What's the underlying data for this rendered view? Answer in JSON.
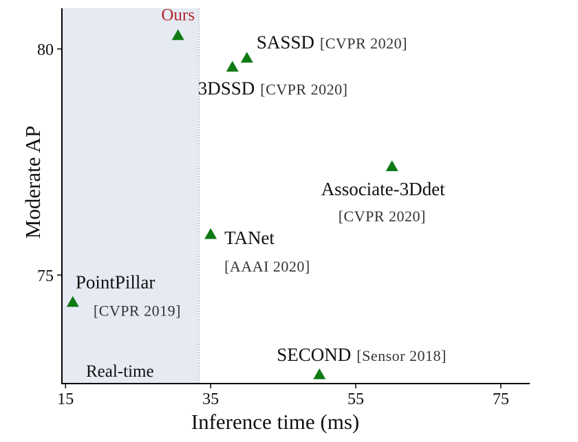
{
  "chart_data": {
    "type": "scatter",
    "xlabel": "Inference time (ms)",
    "ylabel": "Moderate AP",
    "xlim": [
      14.5,
      79
    ],
    "ylim": [
      72.6,
      80.9
    ],
    "x_ticks": [
      "15",
      "35",
      "55",
      "75"
    ],
    "y_ticks": [
      "75",
      "80"
    ],
    "region": {
      "label": "Real-time",
      "x_range": [
        14.5,
        33.4
      ]
    },
    "marker_color": "#0f7a14",
    "highlight_color": "#b02a2a",
    "points": [
      {
        "name": "Ours",
        "x": 30.5,
        "y": 80.3,
        "venue": ""
      },
      {
        "name": "SASSD",
        "x": 40,
        "y": 79.8,
        "venue": "[CVPR 2020]"
      },
      {
        "name": "3DSSD",
        "x": 38,
        "y": 79.6,
        "venue": "[CVPR 2020]"
      },
      {
        "name": "Associate-3Ddet",
        "x": 60,
        "y": 77.4,
        "venue": "[CVPR 2020]"
      },
      {
        "name": "TANet",
        "x": 35,
        "y": 75.9,
        "venue": "[AAAI 2020]"
      },
      {
        "name": "PointPillar",
        "x": 16,
        "y": 74.4,
        "venue": "[CVPR 2019]"
      },
      {
        "name": "SECOND",
        "x": 50,
        "y": 72.8,
        "venue": "[Sensor 2018]"
      }
    ]
  }
}
